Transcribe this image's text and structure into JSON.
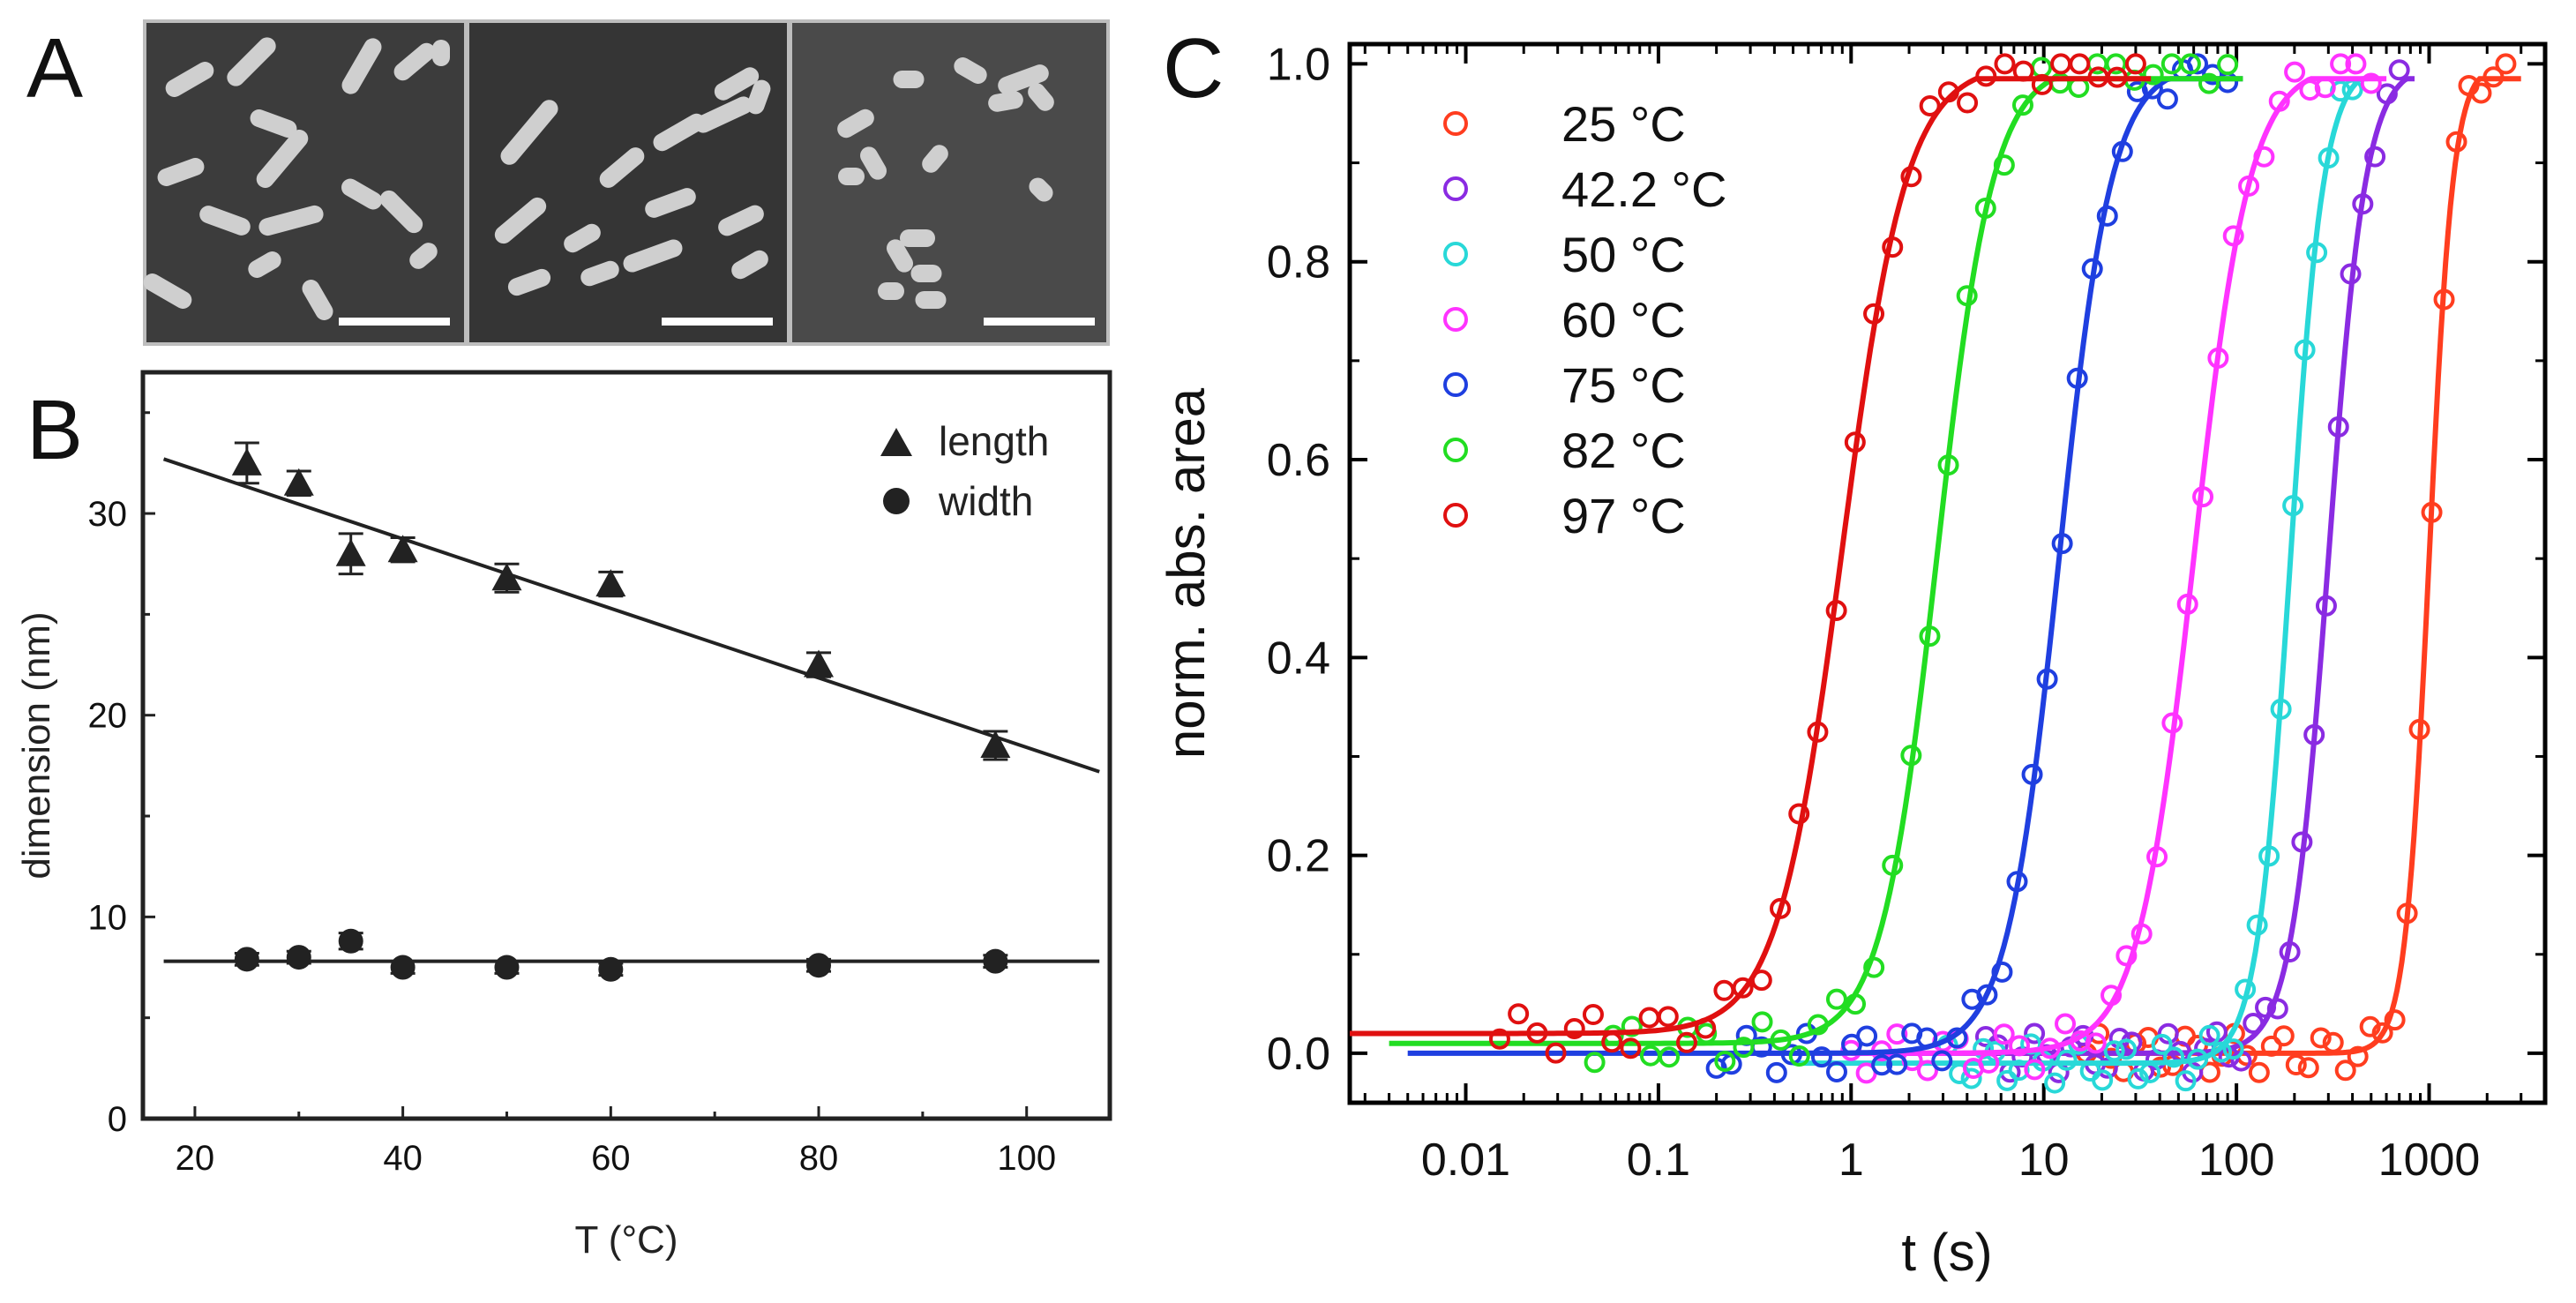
{
  "panels": {
    "a": "A",
    "b": "B",
    "c": "C"
  },
  "chart_data": [
    {
      "id": "panel-A",
      "type": "image",
      "description_label": "A",
      "images": 3,
      "colors": {
        "background": "#3a3a3a",
        "rod": "#c9c9c9",
        "scale_bar": "#ffffff"
      }
    },
    {
      "id": "panel-B",
      "type": "scatter",
      "title": "",
      "xlabel": "T (°C)",
      "ylabel": "dimension (nm)",
      "xlim": [
        15,
        108
      ],
      "ylim": [
        0,
        37
      ],
      "xticks": [
        20,
        40,
        60,
        80,
        100
      ],
      "yticks": [
        0,
        10,
        20,
        30
      ],
      "legend_position": "top-right",
      "series": [
        {
          "name": "length",
          "marker": "triangle",
          "x": [
            25,
            30,
            35,
            40,
            50,
            60,
            80,
            97
          ],
          "y": [
            32.5,
            31.5,
            28.0,
            28.2,
            26.8,
            26.5,
            22.5,
            18.5
          ],
          "err": [
            1.0,
            0.6,
            1.0,
            0.6,
            0.7,
            0.6,
            0.6,
            0.7
          ],
          "fit": {
            "x": [
              17,
              107
            ],
            "y": [
              32.7,
              17.2
            ]
          }
        },
        {
          "name": "width",
          "marker": "circle",
          "x": [
            25,
            30,
            35,
            40,
            50,
            60,
            80,
            97
          ],
          "y": [
            7.9,
            8.0,
            8.8,
            7.5,
            7.5,
            7.4,
            7.6,
            7.8
          ],
          "err": [
            0.3,
            0.3,
            0.4,
            0.3,
            0.3,
            0.3,
            0.3,
            0.3
          ],
          "fit": {
            "x": [
              17,
              107
            ],
            "y": [
              7.8,
              7.8
            ]
          }
        }
      ],
      "colors": {
        "ink": "#222222"
      }
    },
    {
      "id": "panel-C",
      "type": "scatter",
      "title": "",
      "xlabel": "t (s)",
      "ylabel": "norm. abs. area",
      "xscale": "log",
      "xlim": [
        0.0025,
        4000
      ],
      "ylim": [
        -0.05,
        1.02
      ],
      "xticks": [
        0.01,
        0.1,
        1,
        10,
        100,
        1000
      ],
      "xticklabels": [
        "0.01",
        "0.1",
        "1",
        "10",
        "100",
        "1000"
      ],
      "yticks": [
        0.0,
        0.2,
        0.4,
        0.6,
        0.8,
        1.0
      ],
      "yticklabels": [
        "0.0",
        "0.2",
        "0.4",
        "0.6",
        "0.8",
        "1.0"
      ],
      "legend_position": "top-left",
      "series": [
        {
          "name": "25 °C",
          "color": "#ff3d1f",
          "t50": 1000,
          "k": 7.0,
          "base": 0.0,
          "xmin": 5,
          "xmax": 2500
        },
        {
          "name": "42.2 °C",
          "color": "#8a2be2",
          "t50": 300,
          "k": 4.5,
          "base": 0.0,
          "xmin": 1,
          "xmax": 700
        },
        {
          "name": "50 °C",
          "color": "#28d8d8",
          "t50": 190,
          "k": 5.0,
          "base": -0.01,
          "xmin": 0.5,
          "xmax": 400
        },
        {
          "name": "60 °C",
          "color": "#ff33ff",
          "t50": 60,
          "k": 3.0,
          "base": 0.0,
          "xmin": 0.3,
          "xmax": 500
        },
        {
          "name": "75 °C",
          "color": "#1f3fe0",
          "t50": 12,
          "k": 3.2,
          "base": 0.0,
          "xmin": 0.005,
          "xmax": 90
        },
        {
          "name": "82 °C",
          "color": "#22dd22",
          "t50": 2.8,
          "k": 3.0,
          "base": 0.01,
          "xmin": 0.004,
          "xmax": 90
        },
        {
          "name": "97 °C",
          "color": "#e01010",
          "t50": 0.9,
          "k": 2.6,
          "base": 0.02,
          "xmin": 0.0025,
          "xmax": 30
        }
      ],
      "colors": {
        "ink": "#000000"
      }
    }
  ]
}
